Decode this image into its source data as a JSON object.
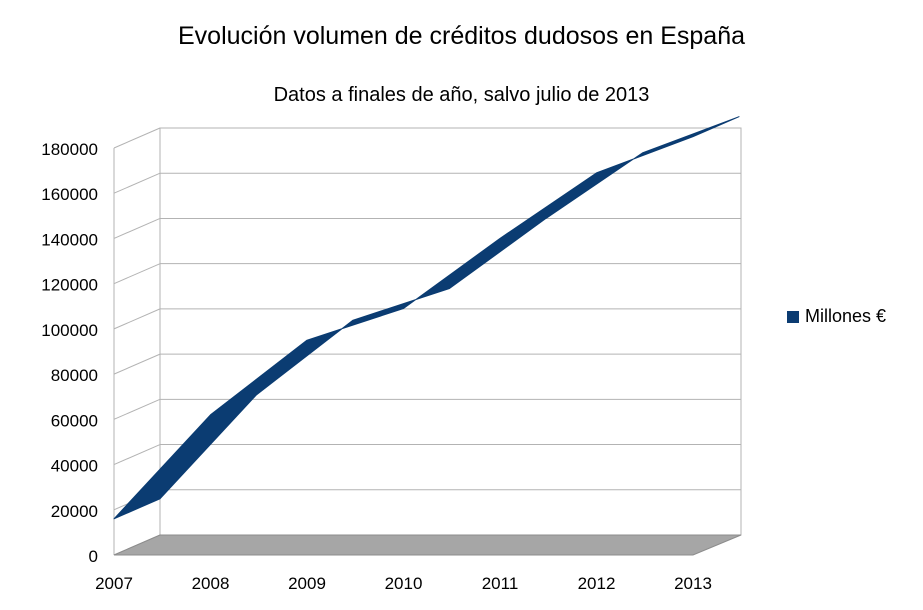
{
  "chart_data": {
    "type": "area",
    "title": "Evolución volumen de créditos dudosos en España",
    "subtitle": "Datos a finales de año, salvo julio de 2013",
    "categories": [
      "2007",
      "2008",
      "2009",
      "2010",
      "2011",
      "2012",
      "2013"
    ],
    "series": [
      {
        "name": "Millones €",
        "values": [
          16000,
          62000,
          95000,
          109000,
          140000,
          169000,
          185000
        ],
        "color": "#0b3c72"
      }
    ],
    "ylim": [
      0,
      180000
    ],
    "yticks": [
      0,
      20000,
      40000,
      60000,
      80000,
      100000,
      120000,
      140000,
      160000,
      180000
    ],
    "grid": true,
    "legend_position": "right",
    "floor_color": "#a6a6a6"
  }
}
